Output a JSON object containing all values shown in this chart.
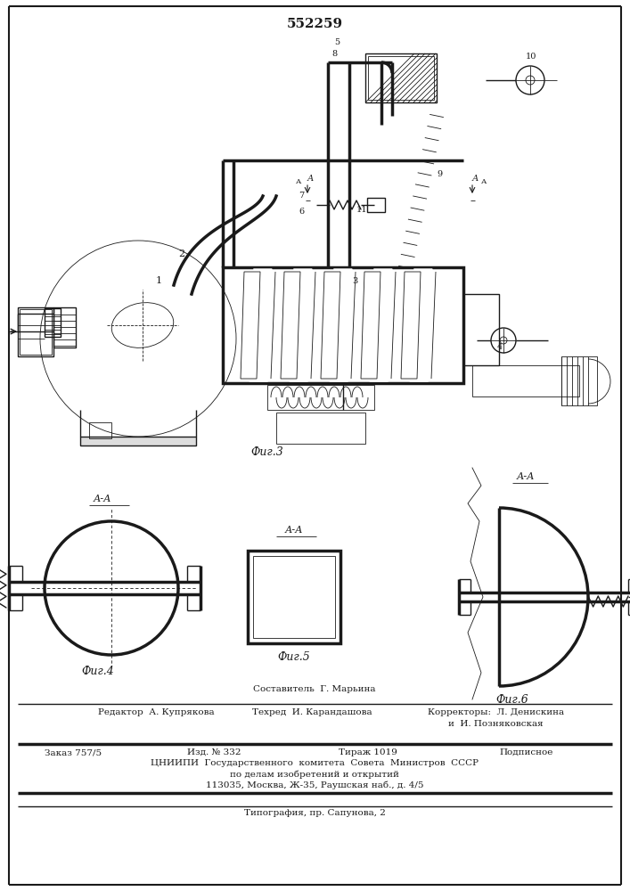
{
  "title": "552259",
  "bg_color": "#ffffff",
  "line_color": "#1a1a1a",
  "fig3_caption": "Фиг.3",
  "fig4_caption": "Фиг.4",
  "fig5_caption": "Фиг.5",
  "fig6_caption": "Фиг.6",
  "footer_line1": "Составитель  Г. Марьина",
  "footer_line2_left": "Редактор  А. Купрякова",
  "footer_line2_mid": "Техред  И. Карандашова",
  "footer_line2_right": "Корректоры:  Л. Денискина",
  "footer_line2_right2": "и  И. Позняковская",
  "footer_line3_1": "Заказ 757/5",
  "footer_line3_2": "Изд. № 332",
  "footer_line3_3": "Тираж 1019",
  "footer_line3_4": "Подписное",
  "footer_line4": "ЦНИИПИ  Государственного  комитета  Совета  Министров  СССР",
  "footer_line5": "по делам изобретений и открытий",
  "footer_line6": "113035, Москва, Ж-35, Раушская наб., д. 4/5",
  "footer_line7": "Типография, пр. Сапунова, 2"
}
